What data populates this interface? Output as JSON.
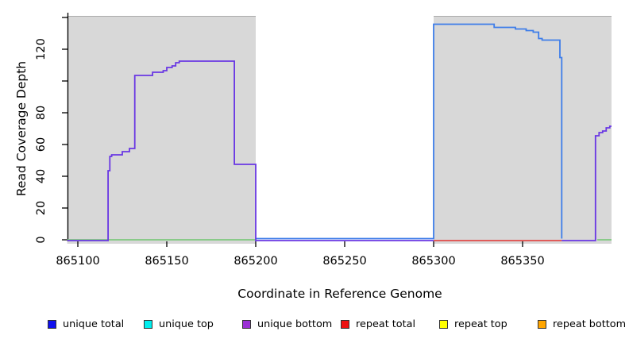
{
  "chart_data": {
    "type": "line",
    "subtype": "step-coverage-plot",
    "title": "",
    "xlabel": "Coordinate in Reference Genome",
    "ylabel": "Read Coverage Depth",
    "xlim": [
      865094,
      865400
    ],
    "ylim": [
      0,
      140
    ],
    "x_ticks": [
      865100,
      865150,
      865200,
      865250,
      865300,
      865350
    ],
    "x_tick_labels": [
      "865100",
      "865150",
      "865200",
      "865250",
      "865300",
      "865350"
    ],
    "y_ticks": [
      0,
      20,
      40,
      60,
      80,
      100,
      120,
      140
    ],
    "y_tick_labels": [
      "0",
      "20",
      "40",
      "60",
      "80",
      "",
      "120",
      ""
    ],
    "grid": false,
    "shaded_regions": {
      "color": "#D8D8D8",
      "edge_color": "#ABABAB",
      "ranges": [
        [
          865094,
          865200
        ],
        [
          865300,
          865400
        ]
      ]
    },
    "series": [
      {
        "name": "annotation-baseline-green",
        "color": "#7EC87E",
        "dy": 0,
        "segments": [
          [
            [
              865094,
              0
            ],
            [
              865200,
              0
            ]
          ],
          [
            [
              865392,
              0
            ],
            [
              865400,
              0
            ]
          ]
        ]
      },
      {
        "name": "repeat-total-baseline",
        "color": "#E24A48",
        "dy": 1,
        "segments": [
          [
            [
              865300,
              0
            ],
            [
              865372,
              0
            ]
          ]
        ]
      },
      {
        "name": "unique-total-right",
        "color": "#3E7DE9",
        "dy": -1.5,
        "segments": [
          [
            [
              865200,
              0
            ],
            [
              865300,
              0
            ],
            [
              865300,
              135
            ],
            [
              865334,
              135
            ],
            [
              865334,
              133
            ],
            [
              865346,
              133
            ],
            [
              865346,
              132
            ],
            [
              865352,
              132
            ],
            [
              865352,
              131
            ],
            [
              865356,
              131
            ],
            [
              865356,
              130
            ],
            [
              865359,
              130
            ],
            [
              865359,
              126
            ],
            [
              865361,
              126
            ],
            [
              865361,
              125
            ],
            [
              865371,
              125
            ],
            [
              865371,
              114
            ],
            [
              865372,
              114
            ],
            [
              865372,
              0
            ]
          ]
        ]
      },
      {
        "name": "unique-bottom-purple",
        "color": "#6937E3",
        "dy": 1,
        "segments": [
          [
            [
              865094,
              0
            ],
            [
              865117,
              0
            ],
            [
              865117,
              44
            ],
            [
              865118,
              44
            ],
            [
              865118,
              53
            ],
            [
              865119,
              53
            ],
            [
              865119,
              54
            ],
            [
              865125,
              54
            ],
            [
              865125,
              56
            ],
            [
              865129,
              56
            ],
            [
              865129,
              58
            ],
            [
              865132,
              58
            ],
            [
              865132,
              104
            ],
            [
              865142,
              104
            ],
            [
              865142,
              106
            ],
            [
              865148,
              106
            ],
            [
              865148,
              107
            ],
            [
              865150,
              107
            ],
            [
              865150,
              109
            ],
            [
              865153,
              109
            ],
            [
              865153,
              110
            ],
            [
              865155,
              110
            ],
            [
              865155,
              112
            ],
            [
              865157,
              112
            ],
            [
              865157,
              113
            ],
            [
              865188,
              113
            ],
            [
              865188,
              48
            ],
            [
              865200,
              48
            ],
            [
              865200,
              0
            ],
            [
              865300,
              0
            ]
          ],
          [
            [
              865372,
              0
            ],
            [
              865391,
              0
            ],
            [
              865391,
              66
            ],
            [
              865393,
              66
            ],
            [
              865393,
              68
            ],
            [
              865395,
              68
            ],
            [
              865395,
              69
            ],
            [
              865397,
              69
            ],
            [
              865397,
              71
            ],
            [
              865399,
              71
            ],
            [
              865399,
              72
            ],
            [
              865400,
              72
            ]
          ]
        ]
      }
    ],
    "legend_position": "bottom"
  },
  "legend": [
    {
      "label": "unique total",
      "color": "#1010EE"
    },
    {
      "label": "unique top",
      "color": "#00EEEE"
    },
    {
      "label": "unique bottom",
      "color": "#9B30D5"
    },
    {
      "label": "repeat total",
      "color": "#EE1111"
    },
    {
      "label": "repeat top",
      "color": "#FFFF00"
    },
    {
      "label": "repeat bottom",
      "color": "#FFA500"
    }
  ]
}
